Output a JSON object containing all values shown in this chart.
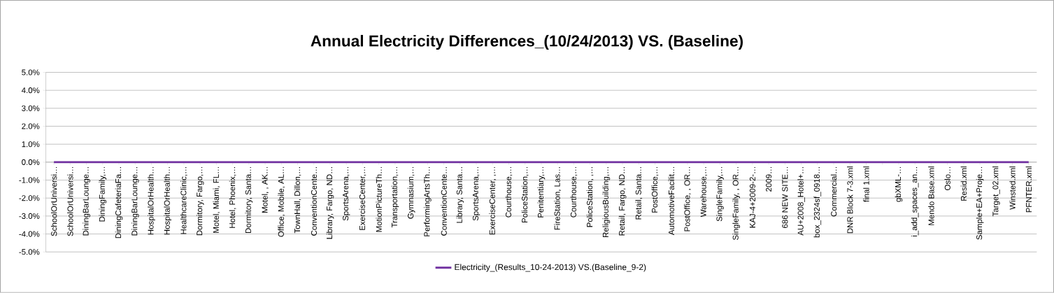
{
  "chart_data": {
    "type": "line",
    "title": "Annual Electricity Differences_(10/24/2013) VS. (Baseline)",
    "categories": [
      "SchoolOrUniversi…",
      "SchoolOrUniversi…",
      "DiningBarLounge…",
      "DiningFamily,…",
      "DiningCafeteriaFa…",
      "DiningBarLounge…",
      "HospitalOrHealth…",
      "HospitalOrHealth…",
      "HealthcareClinic,…",
      "Dormitory, Fargo,…",
      "Motel, Miami, FL…",
      "Hotel, Phoenix,…",
      "Dormitory, Santa…",
      "Motel, , AK…",
      "Office, Mobile, AL…",
      "TownHall, Dillon,…",
      "ConventionCente…",
      "Library, Fargo, ND…",
      "SportsArena,…",
      "ExerciseCenter,…",
      "MotionPictureTh…",
      "Transportation,…",
      "Gymnasium,…",
      "PerformingArtsTh…",
      "ConventionCente…",
      "Library, Santa…",
      "SportsArena,…",
      "ExerciseCenter, ,…",
      "Courthouse,…",
      "PoliceStation,…",
      "Penitentiary,…",
      "FireStation, Las…",
      "Courthouse,…",
      "PoliceStation, ,…",
      "ReligiousBuilding,…",
      "Retail, Fargo, ND…",
      "Retail, Santa…",
      "PostOffice,…",
      "AutomotiveFacilit…",
      "PostOffice, , OR…",
      "Warehouse,…",
      "SingleFamily,…",
      "SingleFamily, , OR…",
      "KAJ-4+2009-2-…",
      "2009…",
      "686 NEW SITE…",
      "AU+2008_Hotel+…",
      "box_2324sf_0918…",
      "Commercial…",
      "DNR Block 7-3.xml",
      "final 1.xml",
      null,
      "gbXML-…",
      "i_add_spaces_an…",
      "Mendo Base.xml",
      "Oslo…",
      "Resid.xml",
      "Sample+EA+Proje…",
      "Target_02.xml",
      "Winsted.xml",
      "PFNTER.xml"
    ],
    "series": [
      {
        "name": "Electricity_(Results_10-24-2013) VS.(Baseline_9-2)",
        "color": "#7030a0",
        "values": [
          0,
          0,
          0,
          0,
          0,
          0,
          0,
          0,
          0,
          0,
          0,
          0,
          0,
          0,
          0,
          0,
          0,
          0,
          0,
          0,
          0,
          0,
          0,
          0,
          0,
          0,
          0,
          0,
          0,
          0,
          0,
          0,
          0,
          0,
          0,
          0,
          0,
          0,
          0,
          0,
          0,
          0,
          0,
          0,
          0,
          0,
          0,
          0,
          0,
          0,
          0,
          0,
          0,
          0,
          0,
          0,
          0,
          0,
          0,
          0,
          0
        ]
      }
    ],
    "ylim": [
      -5,
      5
    ],
    "yticks": [
      {
        "value": -5,
        "label": "-5.0%"
      },
      {
        "value": -4,
        "label": "-4.0%"
      },
      {
        "value": -3,
        "label": "-3.0%"
      },
      {
        "value": -2,
        "label": "-2.0%"
      },
      {
        "value": -1,
        "label": "-1.0%"
      },
      {
        "value": 0,
        "label": "0.0%"
      },
      {
        "value": 1,
        "label": "1.0%"
      },
      {
        "value": 2,
        "label": "2.0%"
      },
      {
        "value": 3,
        "label": "3.0%"
      },
      {
        "value": 4,
        "label": "4.0%"
      },
      {
        "value": 5,
        "label": "5.0%"
      }
    ],
    "grid": "y",
    "legend": "bottom",
    "marker": "none",
    "line_style": "solid"
  }
}
